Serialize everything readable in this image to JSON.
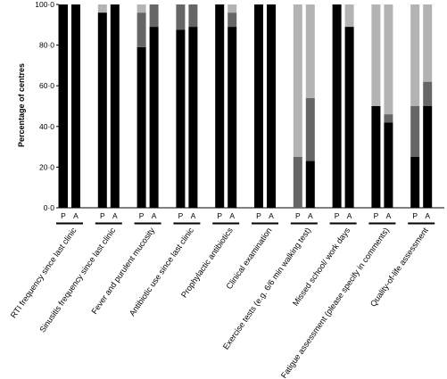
{
  "chart_data": {
    "type": "bar",
    "stacked": true,
    "ylabel": "Percentage of centres",
    "ylim": [
      0,
      100
    ],
    "yticks": [
      "0·0",
      "20·0",
      "40·0",
      "60·0",
      "80·0",
      "100·0"
    ],
    "ytick_values": [
      0,
      20,
      40,
      60,
      80,
      100
    ],
    "bar_labels": [
      "P",
      "A"
    ],
    "colors": {
      "black": "#000000",
      "dark_grey": "#666666",
      "light_grey": "#b3b3b3",
      "axis": "#000000"
    },
    "categories": [
      "RTI frequency since last clinic",
      "Sinusitis frequency since last clinic",
      "Fever and purulent mucosity",
      "Antibiotic use since last clinic",
      "Prophylactic antibiotics",
      "Clinical examination",
      "Exercise tests (e.g. 6/6 min walking test)",
      "Missed school/ work days",
      "Fatigue assessment (please specify in comments)",
      "Quality-of-life assessment"
    ],
    "groups": [
      {
        "P": [
          100,
          0,
          0
        ],
        "A": [
          100,
          0,
          0
        ]
      },
      {
        "P": [
          96,
          0,
          4
        ],
        "A": [
          100,
          0,
          0
        ]
      },
      {
        "P": [
          79,
          17,
          4
        ],
        "A": [
          89,
          11,
          0
        ]
      },
      {
        "P": [
          87.5,
          12.5,
          0
        ],
        "A": [
          89,
          11,
          0
        ]
      },
      {
        "P": [
          100,
          0,
          0
        ],
        "A": [
          89,
          7,
          4
        ]
      },
      {
        "P": [
          100,
          0,
          0
        ],
        "A": [
          100,
          0,
          0
        ]
      },
      {
        "P": [
          0,
          25,
          75
        ],
        "A": [
          23,
          31,
          46
        ]
      },
      {
        "P": [
          100,
          0,
          0
        ],
        "A": [
          89,
          0,
          11
        ]
      },
      {
        "P": [
          50,
          0,
          50
        ],
        "A": [
          42,
          4,
          54
        ]
      },
      {
        "P": [
          25,
          25,
          50
        ],
        "A": [
          50,
          12,
          38
        ]
      }
    ]
  }
}
